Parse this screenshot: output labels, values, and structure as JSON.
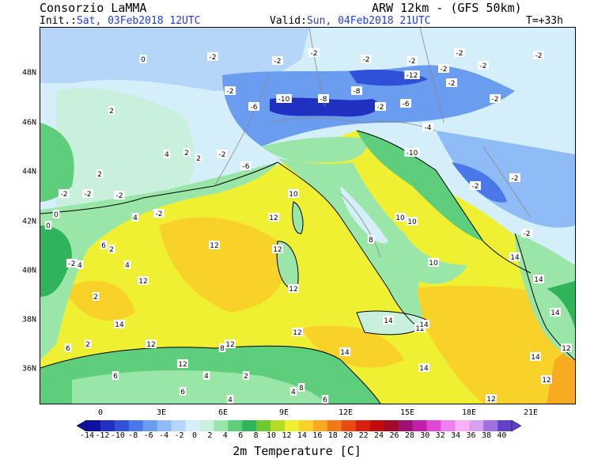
{
  "header": {
    "producer": "Consorzio LaMMA",
    "model": "ARW 12km - (GFS 50km)",
    "init_label": "Init.:",
    "init_value": "Sat, 03Feb2018 12UTC",
    "valid_label": "Valid:",
    "valid_value": "Sun, 04Feb2018 21UTC",
    "lead_time": "T=+33h"
  },
  "axes": {
    "lon_labels": [
      "0",
      "3E",
      "6E",
      "9E",
      "12E",
      "15E",
      "18E",
      "21E"
    ],
    "lat_labels": [
      "48N",
      "46N",
      "44N",
      "42N",
      "40N",
      "38N",
      "36N"
    ]
  },
  "colorbar": {
    "title": "2m Temperature [C]",
    "ticks": [
      "-14",
      "-12",
      "-10",
      "-8",
      "-6",
      "-4",
      "-2",
      "0",
      "2",
      "4",
      "6",
      "8",
      "10",
      "12",
      "14",
      "16",
      "18",
      "20",
      "22",
      "24",
      "26",
      "28",
      "30",
      "32",
      "34",
      "36",
      "38",
      "40"
    ],
    "colors": [
      "#1010a0",
      "#2030c0",
      "#3050d8",
      "#4a78e8",
      "#6a9cf0",
      "#8fbcf6",
      "#b5d6f8",
      "#d4eefa",
      "#c8f0dc",
      "#9ae6a8",
      "#5fce7c",
      "#2fb45c",
      "#6ec832",
      "#b4dc28",
      "#f0f032",
      "#f8d228",
      "#f8aa20",
      "#f07818",
      "#e84a14",
      "#d82010",
      "#c00c0c",
      "#a00a28",
      "#a01070",
      "#c020a8",
      "#e048d8",
      "#f080f0",
      "#f8b0f8",
      "#d8a0f0",
      "#a070e0",
      "#6040c8"
    ]
  },
  "map": {
    "colors": {
      "sea_warm": "#f0f032",
      "sea_mid": "#f8d228",
      "land_cool": "#5fce7c",
      "land_mild": "#9ae6a8",
      "alps": "#4a78e8"
    },
    "temperature_labels": [
      "-2",
      "0",
      "-2",
      "-2",
      "-2",
      "-2",
      "-2",
      "-2",
      "-2",
      "-2",
      "-10",
      "-8",
      "-6",
      "-2",
      "-8",
      "-2",
      "-12",
      "-2",
      "-4",
      "-6",
      "-2",
      "-10",
      "-2",
      "-2",
      "-6",
      "-2",
      "0",
      "2",
      "2",
      "4",
      "2",
      "2",
      "4",
      "-2",
      "-2",
      "4",
      "-2",
      "-2",
      "-2",
      "2",
      "0",
      "6",
      "4",
      "10",
      "12",
      "12",
      "12",
      "10",
      "14",
      "12",
      "8",
      "10",
      "10",
      "12",
      "12",
      "14",
      "12",
      "12",
      "12",
      "14",
      "12",
      "14",
      "14",
      "12",
      "12",
      "14",
      "14",
      "14",
      "14",
      "12",
      "-2",
      "0",
      "2",
      "2",
      "2",
      "4",
      "6",
      "8",
      "6",
      "6",
      "6",
      "4",
      "4",
      "8"
    ]
  }
}
